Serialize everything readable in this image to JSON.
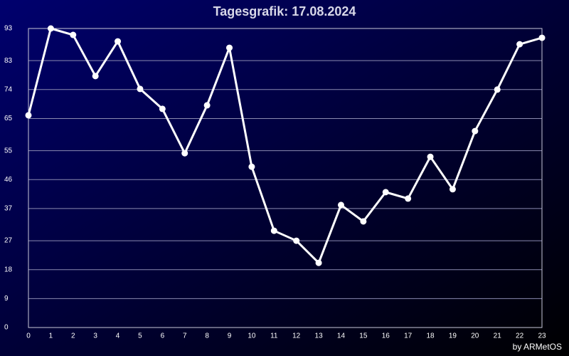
{
  "chart_data": {
    "type": "line",
    "title": "Tagesgrafik: 17.08.2024",
    "credit": "by ARMetOS",
    "x": [
      0,
      1,
      2,
      3,
      4,
      5,
      6,
      7,
      8,
      9,
      10,
      11,
      12,
      13,
      14,
      15,
      16,
      17,
      18,
      19,
      20,
      21,
      22,
      23
    ],
    "xlim": [
      0,
      23
    ],
    "series": [
      {
        "color": "#ffffff",
        "values": [
          66.0,
          93.0,
          91.0,
          78.2,
          89.0,
          74.2,
          68.0,
          54.2,
          69.1,
          87.0,
          50.0,
          30.1,
          27.0,
          20.1,
          38.1,
          33.0,
          42.1,
          40.1,
          53.1,
          43.0,
          61.1,
          74.0,
          88.1,
          90.1
        ]
      }
    ],
    "ylim": [
      0,
      93
    ],
    "yticks": [
      0,
      9,
      18,
      27,
      37,
      46,
      55,
      65,
      74,
      83,
      93
    ],
    "grid": true
  }
}
